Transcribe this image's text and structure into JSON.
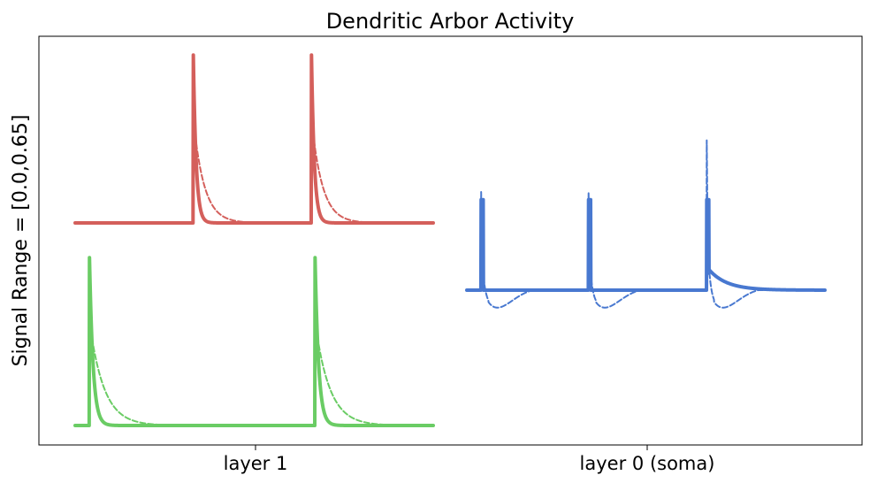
{
  "chart_data": {
    "type": "line",
    "title": "Dendritic Arbor Activity",
    "ylabel": "Signal Range = [0.0,0.65]",
    "xlabel": "",
    "grid": false,
    "legend": "none",
    "categories": [
      "layer 1",
      "layer 0 (soma)"
    ],
    "series": [
      {
        "group": "layer 1",
        "color": "#d45f5b",
        "solid": {
          "spikes": [
            0.33,
            0.66
          ],
          "peak": 0.65,
          "decay": 0.008
        },
        "dashed": {
          "spikes": [
            0.33,
            0.66
          ],
          "peak": 0.65,
          "decay": 0.03
        }
      },
      {
        "group": "layer 1",
        "color": "#6acc64",
        "solid": {
          "spikes": [
            0.04,
            0.67
          ],
          "peak": 0.65,
          "decay": 0.01
        },
        "dashed": {
          "spikes": [
            0.04,
            0.67
          ],
          "peak": 0.65,
          "decay": 0.04
        }
      },
      {
        "group": "layer 0 (soma)",
        "color": "#4878d0",
        "solid": {
          "spikes": [
            0.04,
            0.34,
            0.67
          ],
          "peaks": [
            0.35,
            0.35,
            0.35
          ],
          "tail": 0.08
        },
        "dashed": {
          "spikes": [
            0.04,
            0.34,
            0.67
          ],
          "peaks": [
            0.38,
            0.38,
            0.58
          ],
          "undershoot": -0.06
        }
      }
    ]
  }
}
